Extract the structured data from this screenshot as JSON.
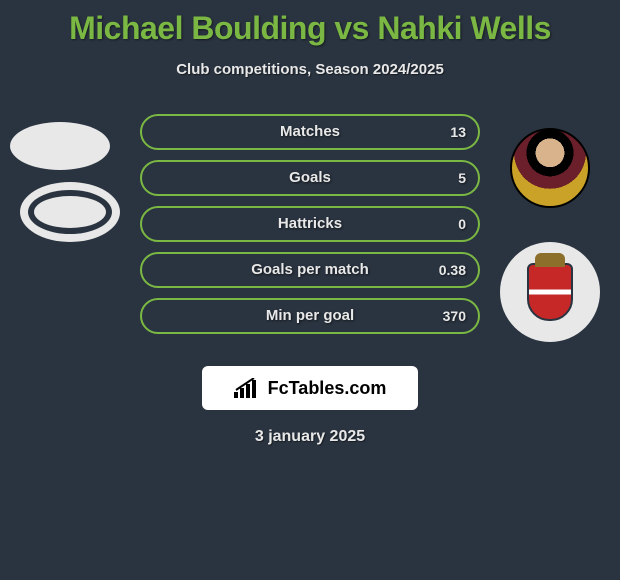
{
  "title": "Michael Boulding vs Nahki Wells",
  "subtitle": "Club competitions, Season 2024/2025",
  "date": "3 january 2025",
  "logo_text": "FcTables.com",
  "colors": {
    "accent": "#7bb843",
    "bg": "#2a3440",
    "text": "#e8e8e8",
    "pill_bg": "#ffffff"
  },
  "bars": [
    {
      "label": "Matches",
      "left": "",
      "right": "13",
      "left_pct": 0
    },
    {
      "label": "Goals",
      "left": "",
      "right": "5",
      "left_pct": 0
    },
    {
      "label": "Hattricks",
      "left": "",
      "right": "0",
      "left_pct": 0
    },
    {
      "label": "Goals per match",
      "left": "",
      "right": "0.38",
      "left_pct": 0
    },
    {
      "label": "Min per goal",
      "left": "",
      "right": "370",
      "left_pct": 0
    }
  ]
}
